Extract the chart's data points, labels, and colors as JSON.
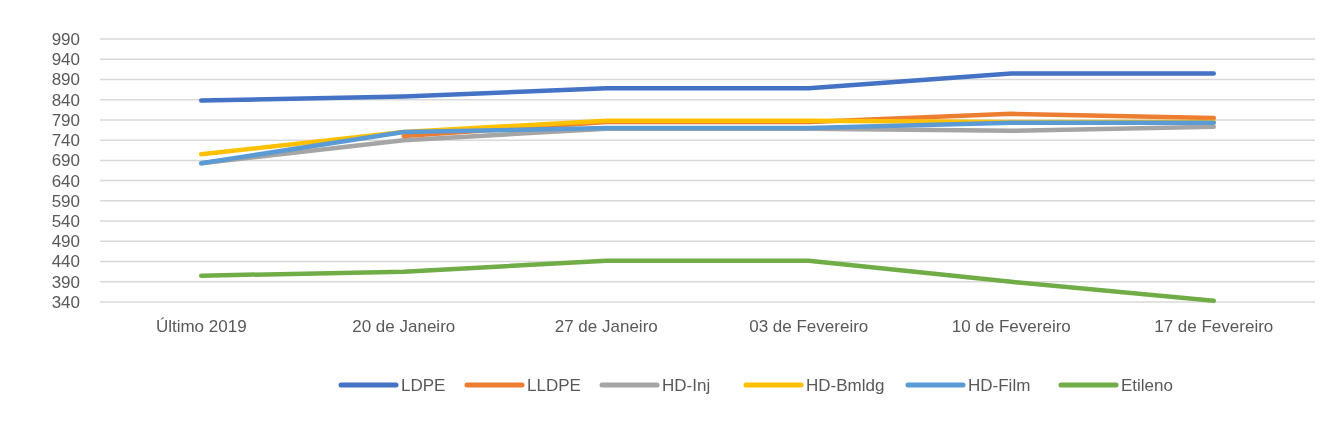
{
  "chart_data": {
    "type": "line",
    "categories": [
      "Último 2019",
      "20 de Janeiro",
      "27 de Janeiro",
      "03 de Fevereiro",
      "10 de Fevereiro",
      "17 de Fevereiro"
    ],
    "series": [
      {
        "name": "LDPE",
        "color": "#4472c4",
        "values": [
          838,
          848,
          868,
          868,
          905,
          905
        ]
      },
      {
        "name": "LLDPE",
        "color": "#ed7d31",
        "values": [
          null,
          750,
          785,
          785,
          805,
          795
        ]
      },
      {
        "name": "HD-Inj",
        "color": "#a5a5a5",
        "values": [
          683,
          740,
          768,
          768,
          763,
          773
        ]
      },
      {
        "name": "HD-Bmldg",
        "color": "#ffc000",
        "values": [
          705,
          760,
          788,
          788,
          785,
          785
        ]
      },
      {
        "name": "HD-Film",
        "color": "#5b9bd5",
        "values": [
          683,
          760,
          770,
          770,
          783,
          783
        ]
      },
      {
        "name": "Etileno",
        "color": "#70ad47",
        "values": [
          405,
          415,
          442,
          442,
          390,
          343
        ]
      }
    ],
    "ylim": [
      340,
      990
    ],
    "yticks": [
      340,
      390,
      440,
      490,
      540,
      590,
      640,
      690,
      740,
      790,
      840,
      890,
      940,
      990
    ],
    "grid": "y",
    "legend": "bottom",
    "marker": "none",
    "line_style": "solid"
  }
}
